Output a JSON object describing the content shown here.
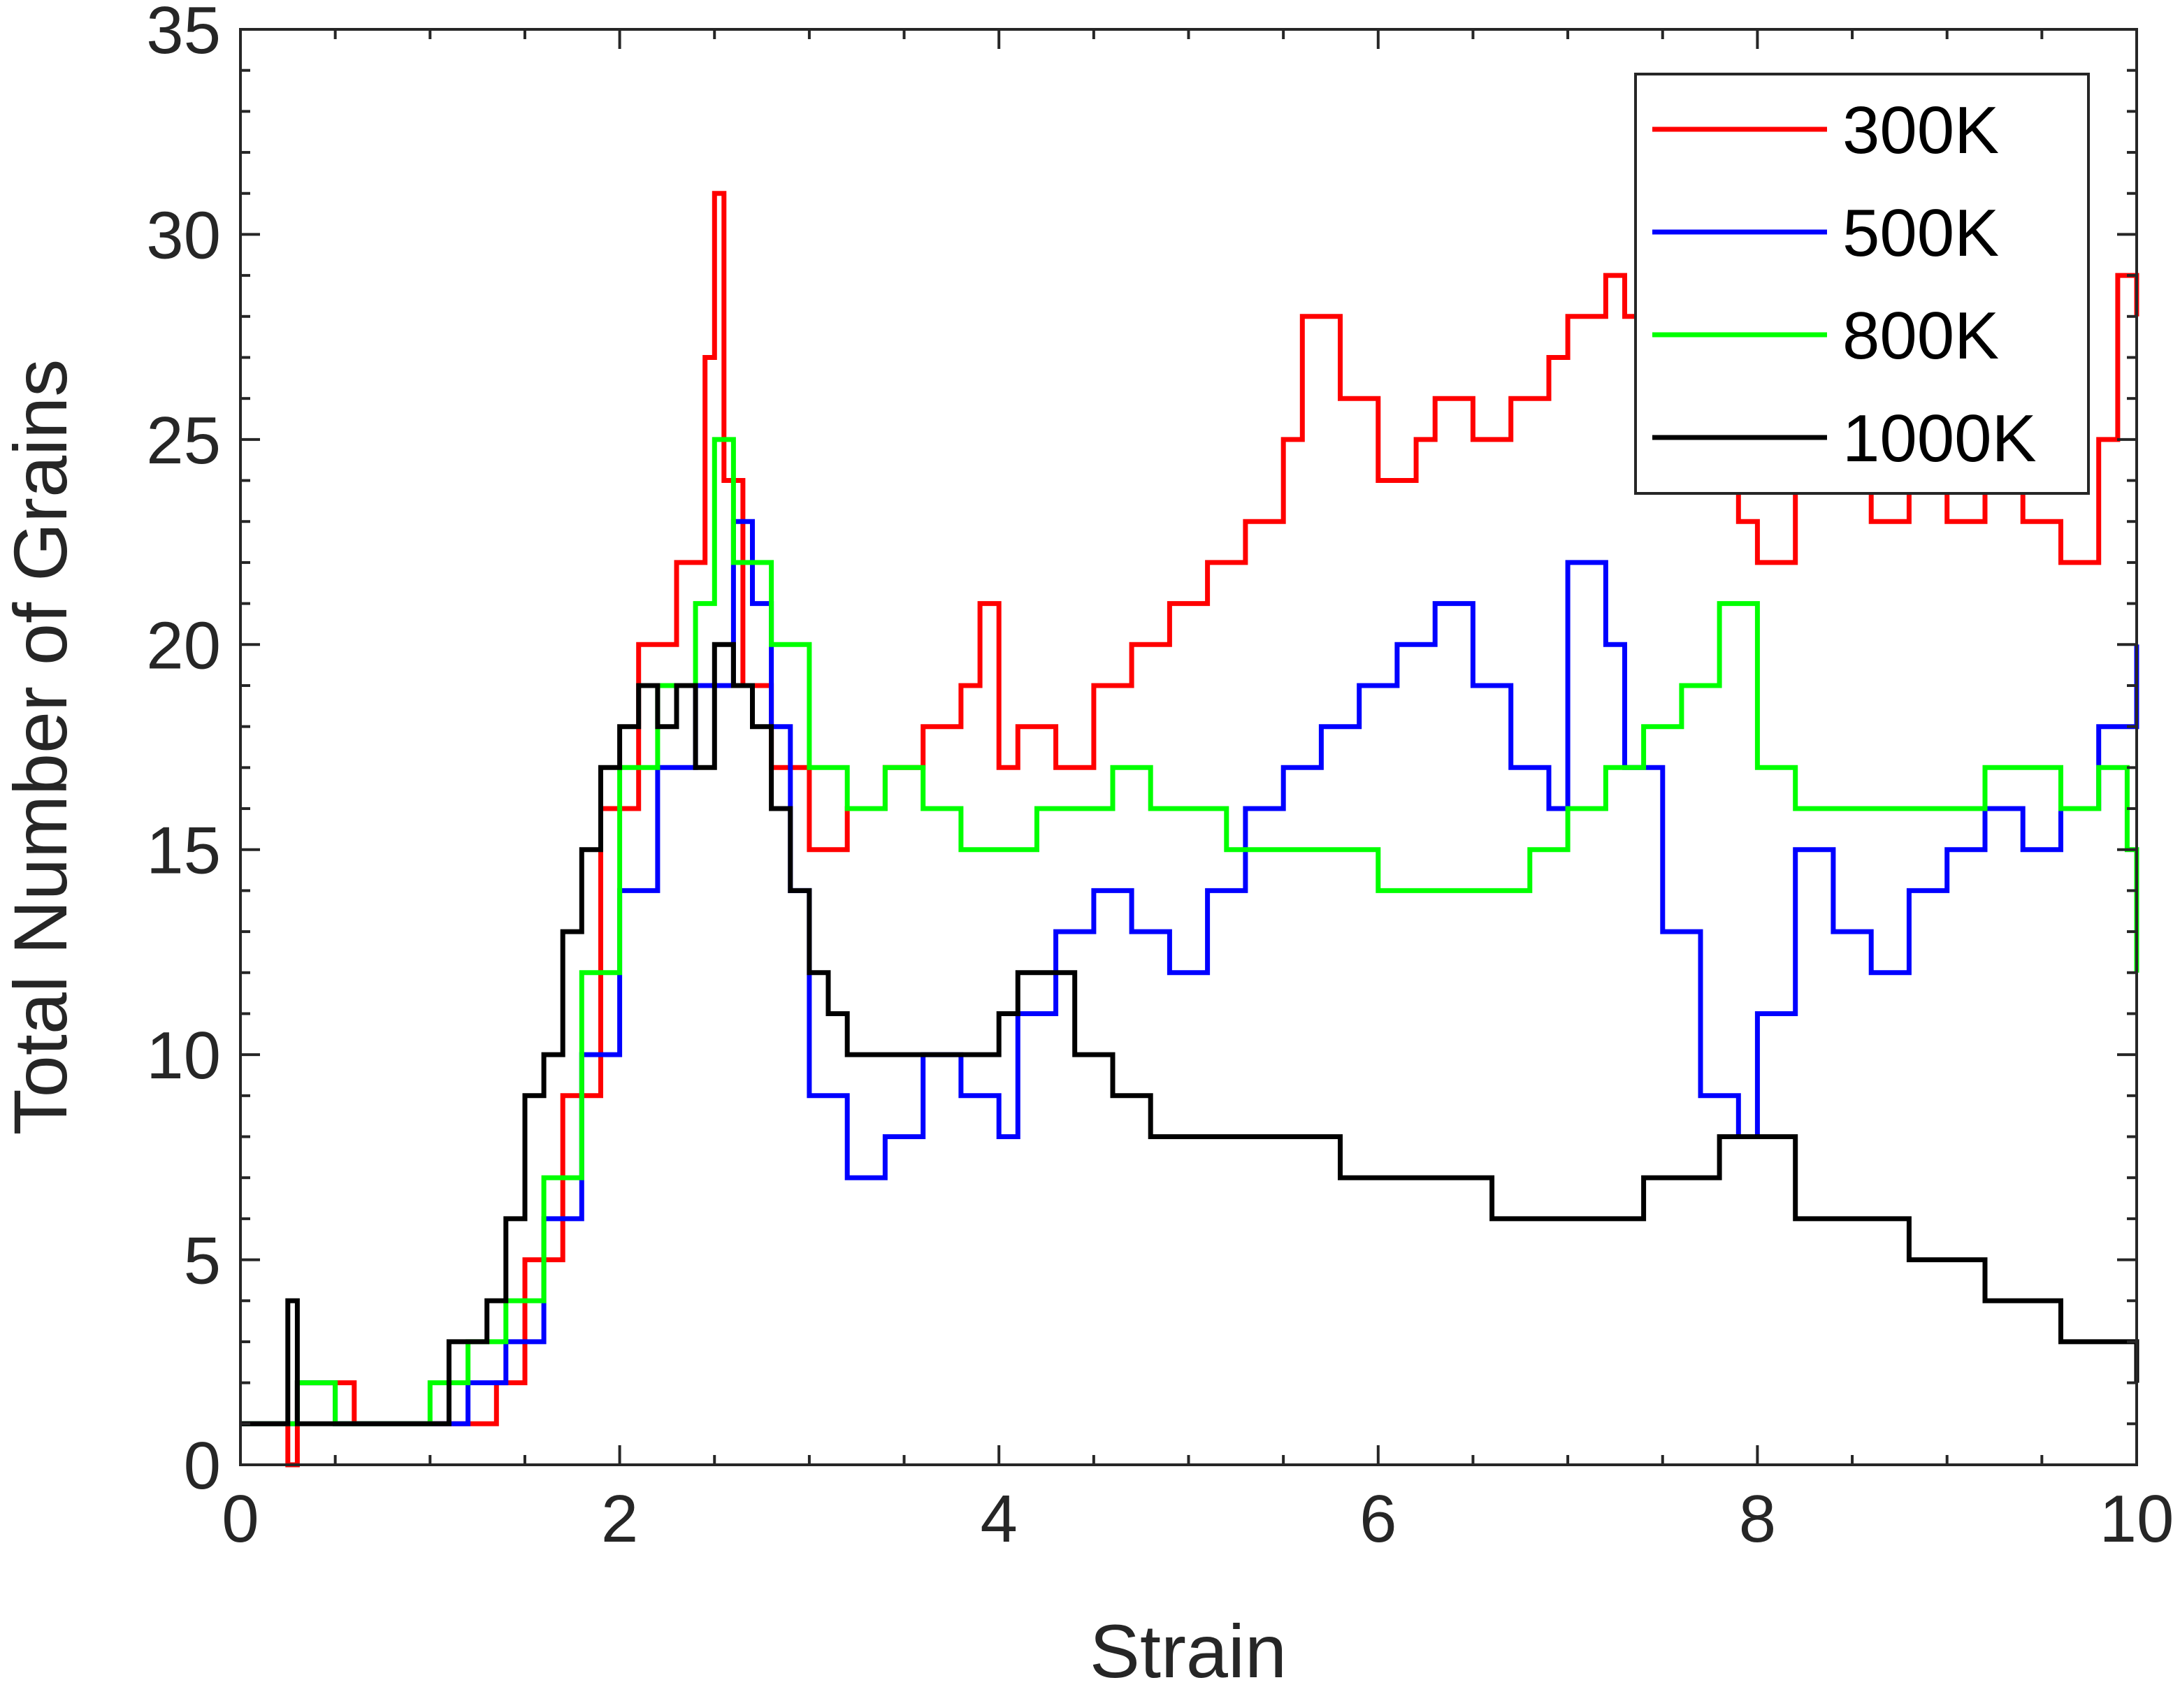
{
  "chart_data": {
    "type": "line",
    "xlabel": "Strain",
    "ylabel": "Total Number of Grains",
    "xlim": [
      0,
      10
    ],
    "ylim": [
      0,
      35
    ],
    "x_ticks": [
      "0",
      "2",
      "4",
      "6",
      "8",
      "10"
    ],
    "y_ticks": [
      "0",
      "5",
      "10",
      "15",
      "20",
      "25",
      "30",
      "35"
    ],
    "grid": false,
    "legend_position": "top-right",
    "series": [
      {
        "name": "300K",
        "color": "#ff0000",
        "x": [
          0,
          0.2,
          0.25,
          0.3,
          0.4,
          0.5,
          0.6,
          0.8,
          1.0,
          1.2,
          1.35,
          1.5,
          1.7,
          1.9,
          2.1,
          2.3,
          2.45,
          2.5,
          2.55,
          2.65,
          2.8,
          3.0,
          3.2,
          3.4,
          3.6,
          3.8,
          3.9,
          4.0,
          4.1,
          4.3,
          4.5,
          4.7,
          4.9,
          5.1,
          5.3,
          5.5,
          5.6,
          5.8,
          6.0,
          6.2,
          6.3,
          6.5,
          6.7,
          6.9,
          7.0,
          7.2,
          7.3,
          7.5,
          7.7,
          7.9,
          8.0,
          8.2,
          8.4,
          8.6,
          8.8,
          9.0,
          9.2,
          9.4,
          9.6,
          9.8,
          9.9,
          10.0
        ],
        "y": [
          1,
          1,
          0,
          2,
          2,
          2,
          1,
          1,
          1,
          1,
          2,
          5,
          9,
          16,
          20,
          22,
          27,
          31,
          24,
          19,
          17,
          15,
          16,
          17,
          18,
          19,
          21,
          17,
          18,
          17,
          19,
          20,
          21,
          22,
          23,
          25,
          28,
          26,
          24,
          25,
          26,
          25,
          26,
          27,
          28,
          29,
          28,
          26,
          24,
          23,
          22,
          24,
          25,
          23,
          24,
          23,
          24,
          23,
          22,
          25,
          29,
          28
        ]
      },
      {
        "name": "500K",
        "color": "#0000ff",
        "x": [
          0,
          0.2,
          0.3,
          0.5,
          0.7,
          0.9,
          1.0,
          1.2,
          1.4,
          1.6,
          1.8,
          2.0,
          2.2,
          2.4,
          2.6,
          2.7,
          2.8,
          2.9,
          3.0,
          3.2,
          3.4,
          3.6,
          3.8,
          4.0,
          4.1,
          4.3,
          4.5,
          4.7,
          4.9,
          5.1,
          5.3,
          5.5,
          5.7,
          5.9,
          6.1,
          6.3,
          6.5,
          6.7,
          6.9,
          7.0,
          7.2,
          7.3,
          7.5,
          7.7,
          7.9,
          8.0,
          8.2,
          8.4,
          8.6,
          8.8,
          9.0,
          9.2,
          9.4,
          9.6,
          9.8,
          10.0
        ],
        "y": [
          1,
          1,
          2,
          1,
          1,
          1,
          1,
          2,
          3,
          6,
          10,
          14,
          17,
          19,
          23,
          21,
          18,
          14,
          9,
          7,
          8,
          10,
          9,
          8,
          11,
          13,
          14,
          13,
          12,
          14,
          16,
          17,
          18,
          19,
          20,
          21,
          19,
          17,
          16,
          22,
          20,
          17,
          13,
          9,
          8,
          11,
          15,
          13,
          12,
          14,
          15,
          16,
          15,
          16,
          18,
          20
        ]
      },
      {
        "name": "800K",
        "color": "#00ff00",
        "x": [
          0,
          0.2,
          0.3,
          0.5,
          0.8,
          1.0,
          1.2,
          1.4,
          1.6,
          1.8,
          2.0,
          2.2,
          2.4,
          2.5,
          2.6,
          2.8,
          3.0,
          3.2,
          3.4,
          3.6,
          3.8,
          4.0,
          4.2,
          4.4,
          4.6,
          4.8,
          5.0,
          5.2,
          5.4,
          5.6,
          5.8,
          6.0,
          6.2,
          6.4,
          6.6,
          6.8,
          7.0,
          7.2,
          7.4,
          7.6,
          7.8,
          8.0,
          8.2,
          8.4,
          8.6,
          8.8,
          9.0,
          9.2,
          9.4,
          9.6,
          9.8,
          9.95,
          10.0
        ],
        "y": [
          1,
          1,
          2,
          1,
          1,
          2,
          3,
          4,
          7,
          12,
          17,
          19,
          21,
          25,
          22,
          20,
          17,
          16,
          17,
          16,
          15,
          15,
          16,
          16,
          17,
          16,
          16,
          15,
          15,
          15,
          15,
          14,
          14,
          14,
          14,
          15,
          16,
          17,
          18,
          19,
          21,
          17,
          16,
          16,
          16,
          16,
          16,
          17,
          17,
          16,
          17,
          15,
          12
        ]
      },
      {
        "name": "1000K",
        "color": "#000000",
        "x": [
          0,
          0.2,
          0.25,
          0.3,
          0.5,
          0.8,
          1.0,
          1.1,
          1.2,
          1.3,
          1.4,
          1.5,
          1.6,
          1.7,
          1.8,
          1.9,
          2.0,
          2.1,
          2.2,
          2.3,
          2.4,
          2.5,
          2.6,
          2.7,
          2.8,
          2.9,
          3.0,
          3.1,
          3.2,
          3.4,
          3.6,
          3.8,
          4.0,
          4.1,
          4.2,
          4.4,
          4.6,
          4.8,
          5.0,
          5.2,
          5.4,
          5.6,
          5.8,
          6.0,
          6.2,
          6.4,
          6.6,
          6.8,
          7.0,
          7.2,
          7.4,
          7.6,
          7.8,
          8.0,
          8.2,
          8.4,
          8.6,
          8.8,
          9.0,
          9.2,
          9.4,
          9.6,
          9.8,
          10.0
        ],
        "y": [
          1,
          1,
          4,
          1,
          1,
          1,
          1,
          3,
          3,
          4,
          6,
          9,
          10,
          13,
          15,
          17,
          18,
          19,
          18,
          19,
          17,
          20,
          19,
          18,
          16,
          14,
          12,
          11,
          10,
          10,
          10,
          10,
          11,
          12,
          12,
          10,
          9,
          8,
          8,
          8,
          8,
          8,
          7,
          7,
          7,
          7,
          6,
          6,
          6,
          6,
          7,
          7,
          8,
          8,
          6,
          6,
          6,
          5,
          5,
          4,
          4,
          3,
          3,
          2
        ]
      }
    ]
  }
}
